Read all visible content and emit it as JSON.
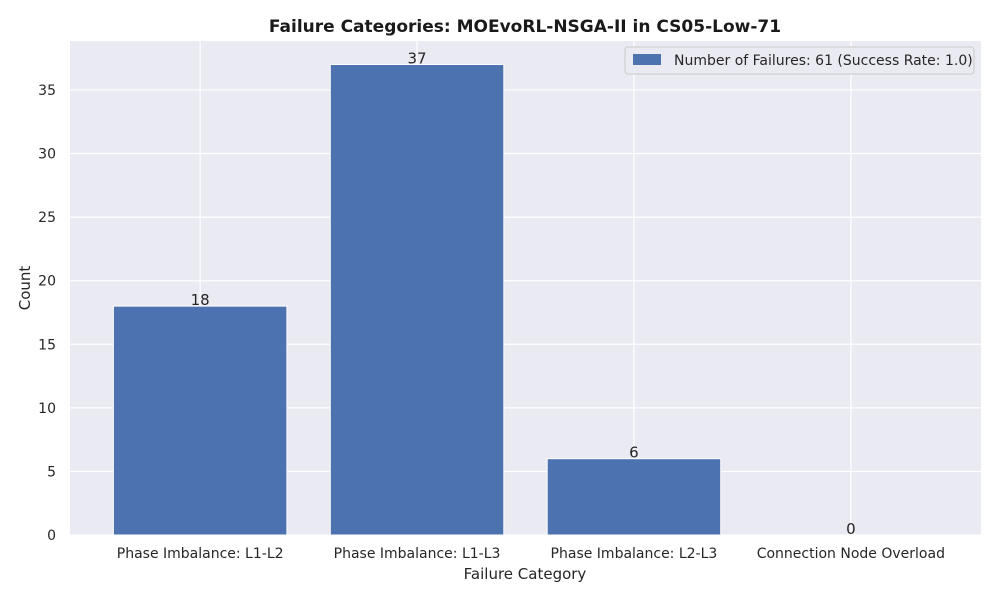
{
  "chart_data": {
    "type": "bar",
    "title": "Failure Categories: MOEvoRL-NSGA-II in CS05-Low-71",
    "xlabel": "Failure Category",
    "ylabel": "Count",
    "categories": [
      "Phase Imbalance: L1-L2",
      "Phase Imbalance: L1-L3",
      "Phase Imbalance: L2-L3",
      "Connection Node Overload"
    ],
    "series": [
      {
        "name": "Number of Failures: 61 (Success Rate: 1.0)",
        "values": [
          18,
          37,
          6,
          0
        ]
      }
    ],
    "ylim": [
      0,
      38.85
    ],
    "yticks": [
      0,
      5,
      10,
      15,
      20,
      25,
      30,
      35
    ],
    "grid": true,
    "legend_position": "top-right"
  },
  "colors": {
    "bar": "#4c72b0",
    "plot_background": "#eaeaf2",
    "grid": "#ffffff"
  }
}
